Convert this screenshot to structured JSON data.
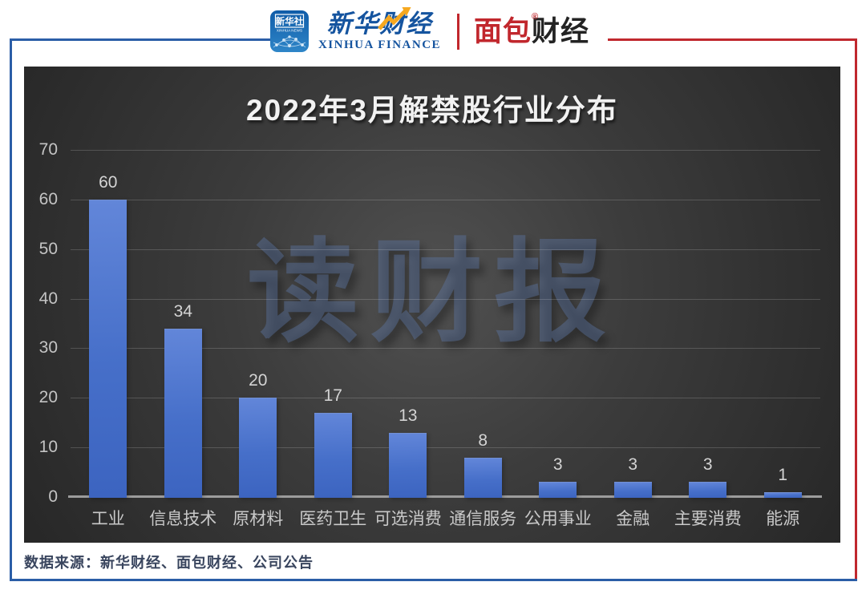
{
  "header": {
    "xinhua_news_badge": {
      "title": "新华社",
      "subtitle": "XINHUA NEWS"
    },
    "xinhua_finance_logo": {
      "cn": "新华财经",
      "en": "XINHUA FINANCE"
    },
    "bread_finance_logo": {
      "cn_left": "面包",
      "cn_right": "财经",
      "reg": "®"
    }
  },
  "chart_data": {
    "type": "bar",
    "title": "2022年3月解禁股行业分布",
    "categories": [
      "工业",
      "信息技术",
      "原材料",
      "医药卫生",
      "可选消费",
      "通信服务",
      "公用事业",
      "金融",
      "主要消费",
      "能源"
    ],
    "values": [
      60,
      34,
      20,
      17,
      13,
      8,
      3,
      3,
      3,
      1
    ],
    "xlabel": "",
    "ylabel": "",
    "ylim": [
      0,
      70
    ],
    "yticks": [
      0,
      10,
      20,
      30,
      40,
      50,
      60,
      70
    ],
    "grid": "horizontal",
    "legend": "none",
    "bar_color": "#4a74ce",
    "watermark": "读财报"
  },
  "footer": {
    "source": "数据来源：新华财经、面包财经、公司公告"
  },
  "colors": {
    "frame_blue": "#2b5ea7",
    "frame_red": "#c0282e",
    "panel_background": "#3c3c3c",
    "bar_fill": "#4a74ce",
    "watermark_blue": "#607aac",
    "logo_blue": "#15549f",
    "logo_red": "#c1272d",
    "footer_text": "#39455e"
  }
}
